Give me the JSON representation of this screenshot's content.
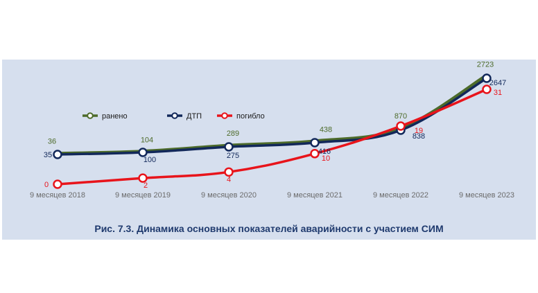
{
  "caption": "Рис. 7.3. Динамика основных показателей аварийности с участием СИМ",
  "chart_data": {
    "type": "line",
    "categories": [
      "9 месяцев 2018",
      "9 месяцев 2019",
      "9 месяцев 2020",
      "9 месяцев 2021",
      "9 месяцев 2022",
      "9 месяцев 2023"
    ],
    "series": [
      {
        "name": "ранено",
        "values": [
          36,
          104,
          289,
          438,
          870,
          2723
        ],
        "color": "#4d6b2a"
      },
      {
        "name": "ДТП",
        "values": [
          35,
          100,
          275,
          416,
          838,
          2647
        ],
        "color": "#12285a"
      },
      {
        "name": "погибло",
        "values": [
          0,
          2,
          4,
          10,
          19,
          31
        ],
        "color": "#e8141b"
      }
    ],
    "data_labels": {
      "ранено": [
        "36",
        "104",
        "289",
        "438",
        "870",
        "2723"
      ],
      "ДТП": [
        "35",
        "100",
        "275",
        "416",
        "838",
        "2647"
      ],
      "погибло": [
        "0",
        "2",
        "4",
        "10",
        "19",
        "31"
      ]
    },
    "legend_position": "top-left",
    "grid": false
  }
}
